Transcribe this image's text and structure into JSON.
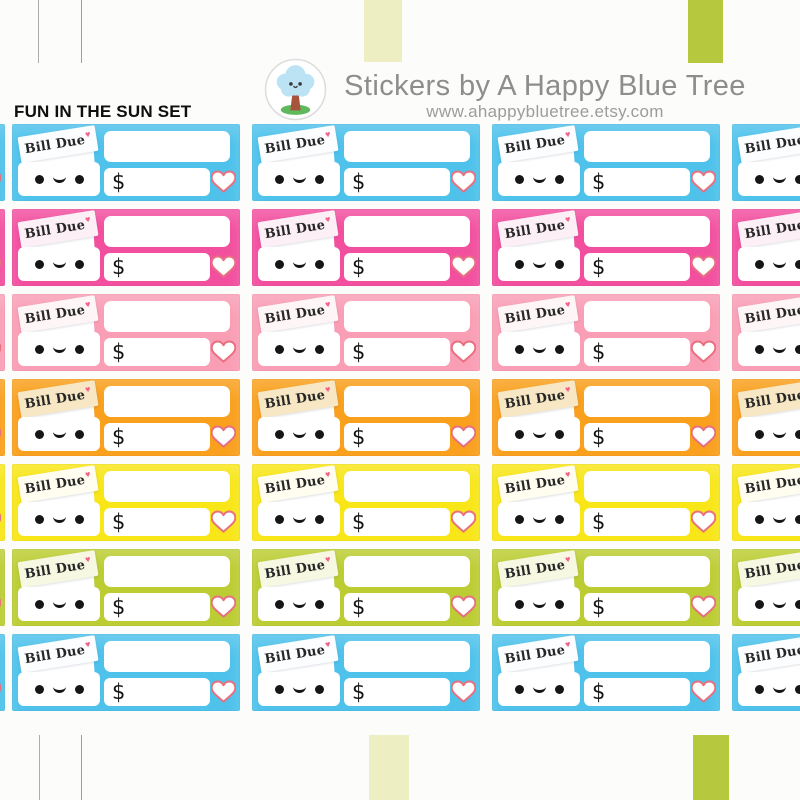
{
  "header": {
    "brand": "Stickers by A Happy Blue Tree",
    "url": "www.ahappybluetree.etsy.com",
    "logo": {
      "name": "happy-blue-tree-logo",
      "ring": "#DCDCDC",
      "foliage": "#BCE3F4",
      "trunk": "#A8543C",
      "grass": "#5FB85C",
      "face": "#3B3B3B"
    }
  },
  "sheet": {
    "title": "FUN IN THE SUN SET",
    "columns_visible": 4,
    "rows_per_column": 7,
    "sticker": {
      "label": "Bill Due",
      "label_heart": "♥",
      "currency": "$",
      "heart_fill": "#FFFFFF",
      "heart_outline": "#E8707F",
      "flag_heart_color": "#F0648C",
      "text_color": "#262626"
    },
    "row_colors": [
      {
        "name": "sky-blue",
        "color": "#4EC2EB",
        "flap": "#C9E9F7",
        "paper": "#FBFDFE"
      },
      {
        "name": "hot-pink",
        "color": "#F24F9F",
        "flap": "#FAD1E5",
        "paper": "#FCEFF6"
      },
      {
        "name": "light-pink",
        "color": "#F99EB5",
        "flap": "#FBD9DF",
        "paper": "#FEF6F6"
      },
      {
        "name": "orange",
        "color": "#F9A01D",
        "flap": "#FADFAF",
        "paper": "#F7E7C4"
      },
      {
        "name": "yellow",
        "color": "#F8E618",
        "flap": "#FBF3B8",
        "paper": "#FEFDF0"
      },
      {
        "name": "green",
        "color": "#BCCD33",
        "flap": "#E6ECB4",
        "paper": "#F6F8E2"
      },
      {
        "name": "sky-blue",
        "color": "#4EC2EB",
        "flap": "#C9E9F7",
        "paper": "#FBFDFE"
      }
    ]
  },
  "washi_colors": {
    "clear": "rgba(252,252,252,0.55)",
    "pale_yellow": "#EDEFC3",
    "olive": "#B5C83E"
  }
}
